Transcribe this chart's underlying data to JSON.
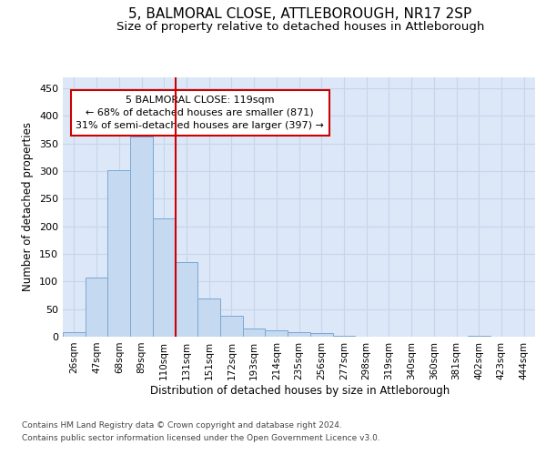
{
  "title": "5, BALMORAL CLOSE, ATTLEBOROUGH, NR17 2SP",
  "subtitle": "Size of property relative to detached houses in Attleborough",
  "xlabel": "Distribution of detached houses by size in Attleborough",
  "ylabel": "Number of detached properties",
  "footnote1": "Contains HM Land Registry data © Crown copyright and database right 2024.",
  "footnote2": "Contains public sector information licensed under the Open Government Licence v3.0.",
  "bin_labels": [
    "26sqm",
    "47sqm",
    "68sqm",
    "89sqm",
    "110sqm",
    "131sqm",
    "151sqm",
    "172sqm",
    "193sqm",
    "214sqm",
    "235sqm",
    "256sqm",
    "277sqm",
    "298sqm",
    "319sqm",
    "340sqm",
    "360sqm",
    "381sqm",
    "402sqm",
    "423sqm",
    "444sqm"
  ],
  "bar_values": [
    8,
    108,
    301,
    362,
    214,
    136,
    70,
    38,
    15,
    12,
    9,
    6,
    2,
    0,
    0,
    0,
    0,
    0,
    2,
    0,
    0
  ],
  "bar_color": "#c5d9f1",
  "bar_edge_color": "#7ba7d4",
  "vline_x": 4.5,
  "vline_color": "#cc0000",
  "annotation_text": "5 BALMORAL CLOSE: 119sqm\n← 68% of detached houses are smaller (871)\n31% of semi-detached houses are larger (397) →",
  "annotation_box_color": "#ffffff",
  "annotation_box_edge_color": "#cc0000",
  "ylim": [
    0,
    470
  ],
  "yticks": [
    0,
    50,
    100,
    150,
    200,
    250,
    300,
    350,
    400,
    450
  ],
  "grid_color": "#c8d4e8",
  "background_color": "#dce8f8",
  "fig_background": "#ffffff",
  "title_fontsize": 11,
  "subtitle_fontsize": 9.5
}
